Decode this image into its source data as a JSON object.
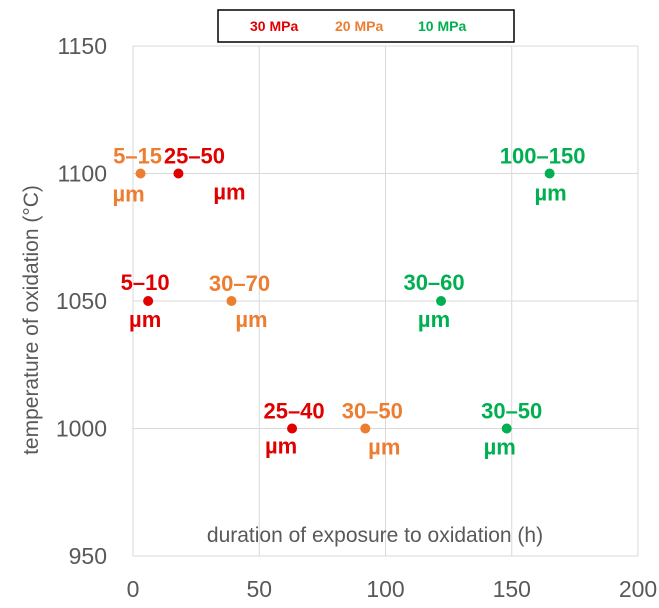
{
  "chart_data": {
    "type": "scatter",
    "xlabel": "duration of exposure to oxidation (h)",
    "ylabel": "temperature of oxidation (°C)",
    "xlim": [
      0,
      200
    ],
    "ylim": [
      950,
      1150
    ],
    "xticks": [
      "0",
      "50",
      "100",
      "150",
      "200"
    ],
    "yticks": [
      "950",
      "1000",
      "1050",
      "1100",
      "1150"
    ],
    "grid": true,
    "legend_position": "top-center",
    "series": [
      {
        "name": "30 MPa",
        "color": "#e00000",
        "points": [
          {
            "x": 18,
            "y": 1100,
            "range": "25–50",
            "unit": "µm"
          },
          {
            "x": 6,
            "y": 1050,
            "range": "5–10",
            "unit": "µm"
          },
          {
            "x": 63,
            "y": 1000,
            "range": "25–40",
            "unit": "µm"
          }
        ]
      },
      {
        "name": "20 MPa",
        "color": "#ed7d31",
        "points": [
          {
            "x": 3,
            "y": 1100,
            "range": "5–15",
            "unit": "µm"
          },
          {
            "x": 39,
            "y": 1050,
            "range": "30–70",
            "unit": "µm"
          },
          {
            "x": 92,
            "y": 1000,
            "range": "30–50",
            "unit": "µm"
          }
        ]
      },
      {
        "name": "10 MPa",
        "color": "#00b050",
        "points": [
          {
            "x": 165,
            "y": 1100,
            "range": "100–150",
            "unit": "µm"
          },
          {
            "x": 122,
            "y": 1050,
            "range": "30–60",
            "unit": "µm"
          },
          {
            "x": 148,
            "y": 1000,
            "range": "30–50",
            "unit": "µm"
          }
        ]
      }
    ]
  }
}
